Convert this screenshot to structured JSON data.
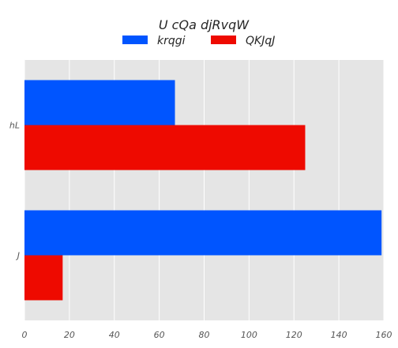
{
  "chart_data": {
    "type": "bar",
    "orientation": "horizontal",
    "title": "U cQa  djRvqW",
    "xlabel": "",
    "ylabel": "",
    "categories": [
      "hL",
      "J"
    ],
    "series": [
      {
        "name": "krqgi",
        "color": "#0055ff",
        "values": [
          67,
          159
        ]
      },
      {
        "name": "QKJqJ",
        "color": "#ee0a00",
        "values": [
          125,
          17
        ]
      }
    ],
    "xlim": [
      0,
      160
    ],
    "xticks": [
      0,
      20,
      40,
      60,
      80,
      100,
      120,
      140,
      160
    ],
    "grid": true,
    "legend_position": "top-center"
  }
}
